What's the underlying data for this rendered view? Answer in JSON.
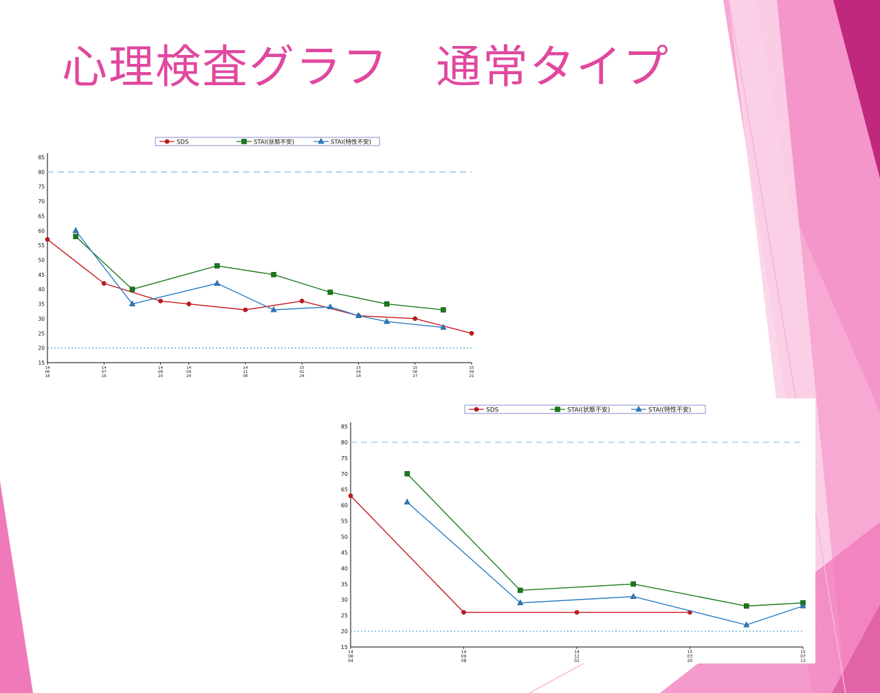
{
  "slide": {
    "title": "心理検査グラフ　通常タイプ",
    "colors": {
      "title": "#e0489e",
      "accent_pink": "#f07ab9",
      "accent_dark": "#c0287e"
    }
  },
  "series_colors": {
    "SDS": "#c8161d",
    "STAI_state": "#1a7a1a",
    "STAI_trait": "#2a7dc4",
    "ref_upper": "#7ec0dd",
    "ref_lower": "#3aa0d0"
  },
  "chart_data": [
    {
      "type": "line",
      "legend": [
        "SDS",
        "STAI(状態不安)",
        "STAI(特性不安)"
      ],
      "legend_placement": "top-center",
      "ylim": [
        15,
        85
      ],
      "yticks": [
        15,
        20,
        25,
        30,
        35,
        40,
        45,
        50,
        55,
        60,
        65,
        70,
        75,
        80,
        85
      ],
      "reference_lines": [
        80,
        20
      ],
      "x_ticks": [
        {
          "i": 0,
          "label": [
            "14",
            "06",
            "18"
          ]
        },
        {
          "i": 2,
          "label": [
            "14",
            "07",
            "16"
          ]
        },
        {
          "i": 4,
          "label": [
            "14",
            "08",
            "20"
          ]
        },
        {
          "i": 5,
          "label": [
            "14",
            "09",
            "24"
          ]
        },
        {
          "i": 7,
          "label": [
            "14",
            "11",
            "08"
          ]
        },
        {
          "i": 9,
          "label": [
            "15",
            "01",
            "24"
          ]
        },
        {
          "i": 11,
          "label": [
            "15",
            "04",
            "18"
          ]
        },
        {
          "i": 13,
          "label": [
            "15",
            "06",
            "27"
          ]
        },
        {
          "i": 15,
          "label": [
            "15",
            "09",
            "21"
          ]
        }
      ],
      "x_count": 15,
      "series": [
        {
          "name": "SDS",
          "points": [
            [
              0,
              57
            ],
            [
              2,
              42
            ],
            [
              4,
              36
            ],
            [
              5,
              35
            ],
            [
              7,
              33
            ],
            [
              9,
              36
            ],
            [
              11,
              31
            ],
            [
              13,
              30
            ],
            [
              15,
              25
            ]
          ]
        },
        {
          "name": "STAI(状態不安)",
          "points": [
            [
              1,
              58
            ],
            [
              3,
              40
            ],
            [
              6,
              48
            ],
            [
              8,
              45
            ],
            [
              10,
              39
            ],
            [
              12,
              35
            ],
            [
              14,
              33
            ]
          ]
        },
        {
          "name": "STAI(特性不安)",
          "points": [
            [
              1,
              60
            ],
            [
              3,
              35
            ],
            [
              6,
              42
            ],
            [
              8,
              33
            ],
            [
              10,
              34
            ],
            [
              11,
              31
            ],
            [
              12,
              29
            ],
            [
              14,
              27
            ]
          ]
        }
      ]
    },
    {
      "type": "line",
      "legend": [
        "SDS",
        "STAI(状態不安)",
        "STAI(特性不安)"
      ],
      "legend_placement": "top-center",
      "ylim": [
        15,
        85
      ],
      "yticks": [
        15,
        20,
        25,
        30,
        35,
        40,
        45,
        50,
        55,
        60,
        65,
        70,
        75,
        80,
        85
      ],
      "reference_lines": [
        80,
        20
      ],
      "x_ticks": [
        {
          "i": 0,
          "label": [
            "14",
            "08",
            "04"
          ]
        },
        {
          "i": 2,
          "label": [
            "14",
            "09",
            "08"
          ]
        },
        {
          "i": 4,
          "label": [
            "14",
            "12",
            "02"
          ]
        },
        {
          "i": 6,
          "label": [
            "15",
            "03",
            "20"
          ]
        },
        {
          "i": 8,
          "label": [
            "15",
            "07",
            "13"
          ]
        }
      ],
      "x_count": 8,
      "series": [
        {
          "name": "SDS",
          "points": [
            [
              0,
              63
            ],
            [
              2,
              26
            ],
            [
              4,
              26
            ],
            [
              6,
              26
            ]
          ]
        },
        {
          "name": "STAI(状態不安)",
          "points": [
            [
              1,
              70
            ],
            [
              3,
              33
            ],
            [
              5,
              35
            ],
            [
              7,
              28
            ],
            [
              8,
              29
            ]
          ]
        },
        {
          "name": "STAI(特性不安)",
          "points": [
            [
              1,
              61
            ],
            [
              3,
              29
            ],
            [
              5,
              31
            ],
            [
              7,
              22
            ],
            [
              8,
              28
            ]
          ]
        }
      ]
    }
  ]
}
